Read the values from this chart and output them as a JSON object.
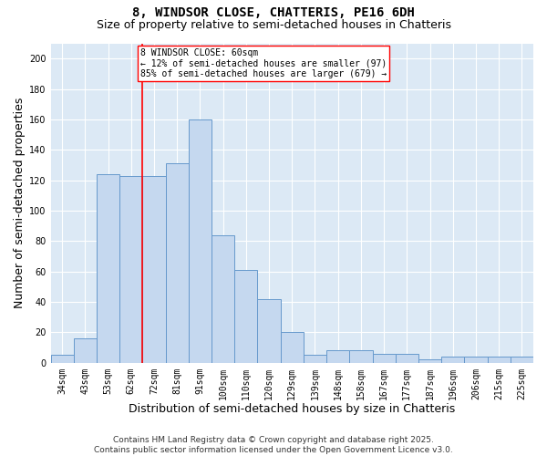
{
  "title1": "8, WINDSOR CLOSE, CHATTERIS, PE16 6DH",
  "title2": "Size of property relative to semi-detached houses in Chatteris",
  "xlabel": "Distribution of semi-detached houses by size in Chatteris",
  "ylabel": "Number of semi-detached properties",
  "categories": [
    "34sqm",
    "43sqm",
    "53sqm",
    "62sqm",
    "72sqm",
    "81sqm",
    "91sqm",
    "100sqm",
    "110sqm",
    "120sqm",
    "129sqm",
    "139sqm",
    "148sqm",
    "158sqm",
    "167sqm",
    "177sqm",
    "187sqm",
    "196sqm",
    "206sqm",
    "215sqm",
    "225sqm"
  ],
  "values": [
    5,
    16,
    124,
    123,
    123,
    131,
    160,
    84,
    61,
    42,
    20,
    5,
    8,
    8,
    6,
    6,
    2,
    4,
    4,
    4,
    4
  ],
  "bar_color": "#c5d8ef",
  "bar_edge_color": "#6699cc",
  "background_color": "#dce9f5",
  "vline_color": "red",
  "vline_pos": 3.5,
  "annotation_text": "8 WINDSOR CLOSE: 60sqm\n← 12% of semi-detached houses are smaller (97)\n85% of semi-detached houses are larger (679) →",
  "annotation_box_color": "white",
  "annotation_box_edge": "red",
  "ylim": [
    0,
    210
  ],
  "yticks": [
    0,
    20,
    40,
    60,
    80,
    100,
    120,
    140,
    160,
    180,
    200
  ],
  "footer": "Contains HM Land Registry data © Crown copyright and database right 2025.\nContains public sector information licensed under the Open Government Licence v3.0.",
  "title_fontsize": 10,
  "subtitle_fontsize": 9,
  "axis_label_fontsize": 9,
  "tick_fontsize": 7,
  "annotation_fontsize": 7,
  "footer_fontsize": 6.5
}
